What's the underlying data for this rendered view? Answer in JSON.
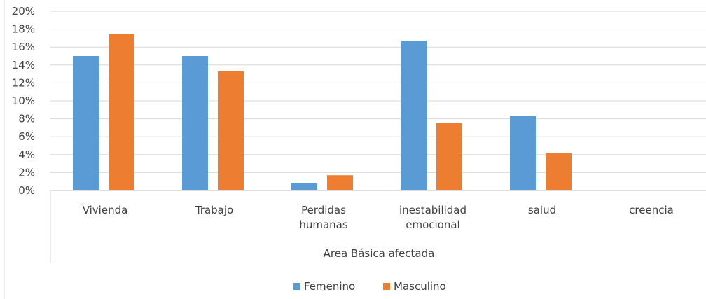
{
  "chart_data": {
    "type": "bar",
    "categories": [
      [
        "Vivienda"
      ],
      [
        "Trabajo"
      ],
      [
        "Perdidas",
        "humanas"
      ],
      [
        "inestabilidad",
        "emocional"
      ],
      [
        "salud"
      ],
      [
        "creencia"
      ]
    ],
    "series": [
      {
        "name": "Femenino",
        "color": "#5b9bd5",
        "values": [
          0.15,
          0.15,
          0.008,
          0.167,
          0.083,
          0
        ]
      },
      {
        "name": "Masculino",
        "color": "#ed7d31",
        "values": [
          0.175,
          0.133,
          0.017,
          0.075,
          0.042,
          0
        ]
      }
    ],
    "xlabel": "Area Básica afectada",
    "ylabel": "",
    "ylim": [
      0,
      0.2
    ],
    "yticks": [
      "0%",
      "2%",
      "4%",
      "6%",
      "8%",
      "10%",
      "12%",
      "14%",
      "16%",
      "18%",
      "20%"
    ],
    "grid": true,
    "legend": "bottom"
  }
}
